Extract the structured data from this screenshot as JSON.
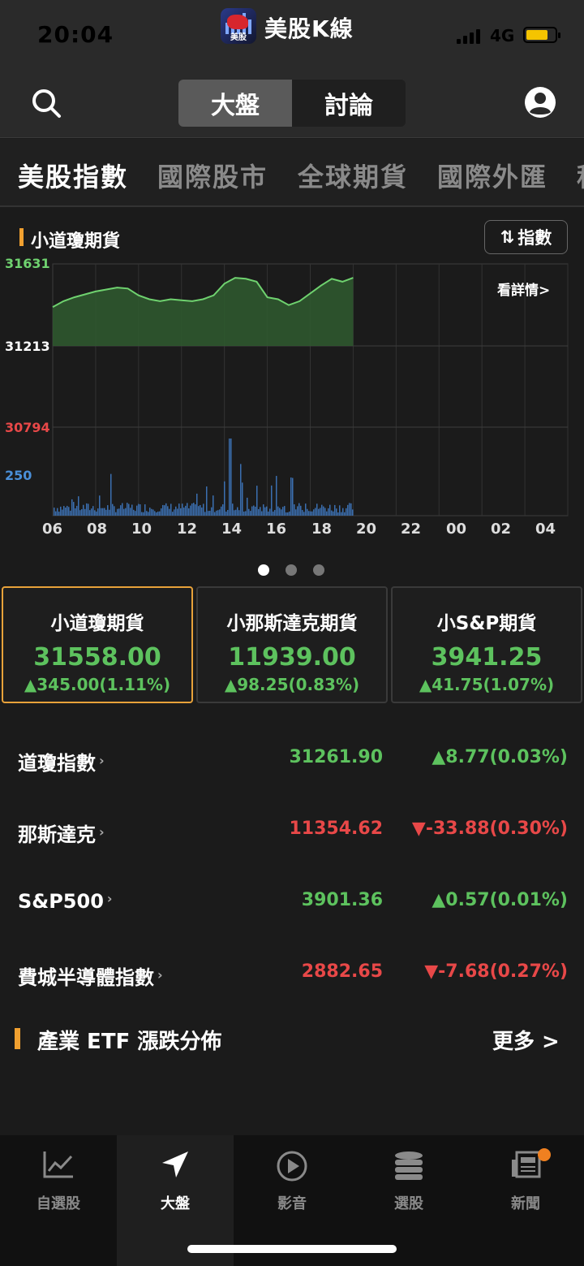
{
  "status": {
    "time": "20:04",
    "network": "4G",
    "app_title": "美股K線",
    "app_badge_label": "美股"
  },
  "header": {
    "segments": [
      "大盤",
      "討論"
    ]
  },
  "categories": [
    "美股指數",
    "國際股市",
    "全球期貨",
    "國際外匯",
    "程"
  ],
  "chart": {
    "title": "小道瓊期貨",
    "switch_label": "指數",
    "detail_link": "看詳情>",
    "colors": {
      "price_line": "#6fd26f",
      "price_fill": "#2f5a2f",
      "volume": "#3b6fb0",
      "high_label": "#6fd26f",
      "mid_label": "#ffffff",
      "low_label": "#e84848",
      "vol_label": "#4a8fd8"
    }
  },
  "chart_data": {
    "type": "area",
    "y_labels": {
      "high": "31631",
      "mid": "31213",
      "low": "30794",
      "volume": "250"
    },
    "ylim": [
      30794,
      31631
    ],
    "x_ticks": [
      "06",
      "08",
      "10",
      "12",
      "14",
      "16",
      "18",
      "20",
      "22",
      "00",
      "02",
      "04"
    ],
    "x": [
      "06:00",
      "06:30",
      "07:00",
      "07:30",
      "08:00",
      "08:30",
      "09:00",
      "09:30",
      "10:00",
      "10:30",
      "11:00",
      "11:30",
      "12:00",
      "12:30",
      "13:00",
      "13:30",
      "14:00",
      "14:30",
      "15:00",
      "15:30",
      "16:00",
      "16:30",
      "17:00",
      "17:30",
      "18:00",
      "18:30",
      "19:00",
      "19:30",
      "20:00"
    ],
    "series": [
      {
        "values": [
          31410,
          31440,
          31460,
          31475,
          31490,
          31500,
          31510,
          31505,
          31470,
          31450,
          31440,
          31450,
          31445,
          31440,
          31450,
          31470,
          31530,
          31560,
          31555,
          31540,
          31460,
          31450,
          31420,
          31440,
          31480,
          31520,
          31555,
          31540,
          31560
        ]
      }
    ]
  },
  "cards": [
    {
      "name": "小道瓊期貨",
      "price": "31558.00",
      "change": "▲345.00(1.11%)"
    },
    {
      "name": "小那斯達克期貨",
      "price": "11939.00",
      "change": "▲98.25(0.83%)"
    },
    {
      "name": "小S&P期貨",
      "price": "3941.25",
      "change": "▲41.75(1.07%)"
    }
  ],
  "indices": [
    {
      "name": "道瓊指數",
      "value": "31261.90",
      "change": "▲8.77(0.03%)",
      "dir": "up"
    },
    {
      "name": "那斯達克",
      "value": "11354.62",
      "change": "▼-33.88(0.30%)",
      "dir": "down"
    },
    {
      "name": "S&P500",
      "value": "3901.36",
      "change": "▲0.57(0.01%)",
      "dir": "up"
    },
    {
      "name": "費城半導體指數",
      "value": "2882.65",
      "change": "▼-7.68(0.27%)",
      "dir": "down"
    }
  ],
  "etf": {
    "title": "產業 ETF 漲跌分佈",
    "more": "更多 >"
  },
  "bottom_nav": [
    {
      "label": "自選股",
      "icon": "trend-chart-icon"
    },
    {
      "label": "大盤",
      "icon": "navigation-arrow-icon"
    },
    {
      "label": "影音",
      "icon": "play-circle-icon"
    },
    {
      "label": "選股",
      "icon": "database-stack-icon"
    },
    {
      "label": "新聞",
      "icon": "newspaper-icon"
    }
  ]
}
